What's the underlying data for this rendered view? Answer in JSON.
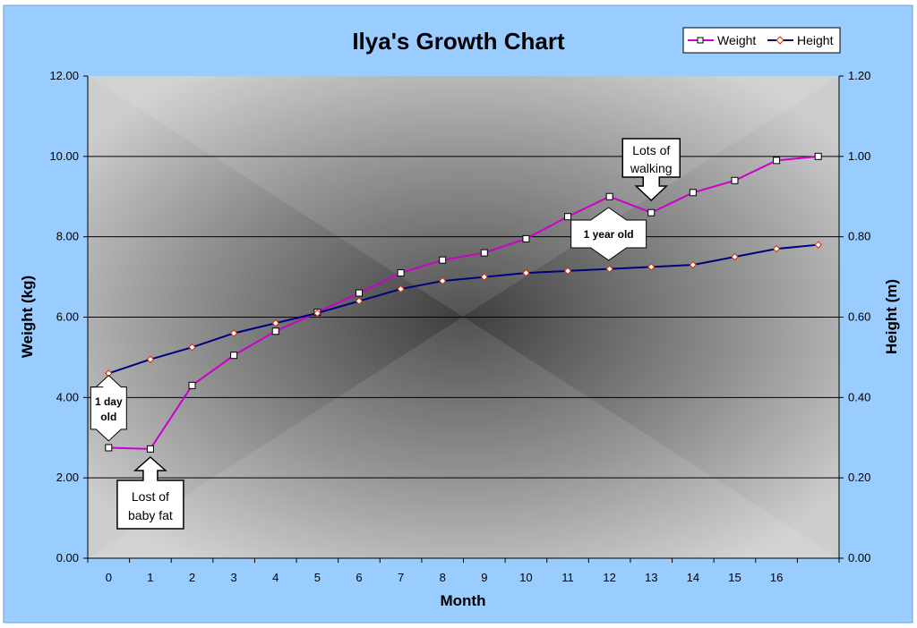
{
  "chart_data": {
    "type": "line",
    "title": "Ilya's Growth Chart",
    "xlabel": "Month",
    "ylabel": "Weight (kg)",
    "y2label": "Height (m)",
    "categories": [
      "0",
      "1",
      "2",
      "3",
      "4",
      "5",
      "6",
      "7",
      "8",
      "9",
      "10",
      "11",
      "12",
      "13",
      "14",
      "15",
      "16",
      ""
    ],
    "ylim": [
      0,
      12
    ],
    "y_ticks": [
      "0.00",
      "2.00",
      "4.00",
      "6.00",
      "8.00",
      "10.00",
      "12.00"
    ],
    "y2lim": [
      0,
      1.2
    ],
    "y2_ticks": [
      "0.00",
      "0.20",
      "0.40",
      "0.60",
      "0.80",
      "1.00",
      "1.20"
    ],
    "legend_position": "top-right",
    "grid": true,
    "series": [
      {
        "name": "Weight",
        "axis": "left",
        "color": "#cc00cc",
        "marker": "square",
        "values": [
          2.75,
          2.72,
          4.3,
          5.05,
          5.65,
          6.12,
          6.6,
          7.1,
          7.42,
          7.6,
          7.95,
          8.5,
          9.0,
          8.6,
          9.1,
          9.4,
          9.9,
          10.0
        ]
      },
      {
        "name": "Height",
        "axis": "right",
        "color": "#000080",
        "marker": "diamond",
        "values": [
          0.46,
          0.495,
          0.525,
          0.56,
          0.585,
          0.61,
          0.64,
          0.67,
          0.69,
          0.7,
          0.71,
          0.715,
          0.72,
          0.725,
          0.73,
          0.75,
          0.77,
          0.78
        ]
      }
    ],
    "annotations": [
      {
        "lines": [
          "1 day",
          "old"
        ],
        "style": "double-arrow-vertical",
        "bold": true
      },
      {
        "lines": [
          "Lost of",
          "baby fat"
        ],
        "style": "arrow-up",
        "bold": false
      },
      {
        "lines": [
          "1 year old"
        ],
        "style": "double-arrow-vertical",
        "bold": true
      },
      {
        "lines": [
          "Lots of",
          "walking"
        ],
        "style": "arrow-down",
        "bold": false
      }
    ]
  },
  "colors": {
    "frame_background": "#99ccff",
    "plot_center": "#4a4a4a",
    "plot_edge": "#c8c8c8",
    "gridline": "#000000"
  }
}
